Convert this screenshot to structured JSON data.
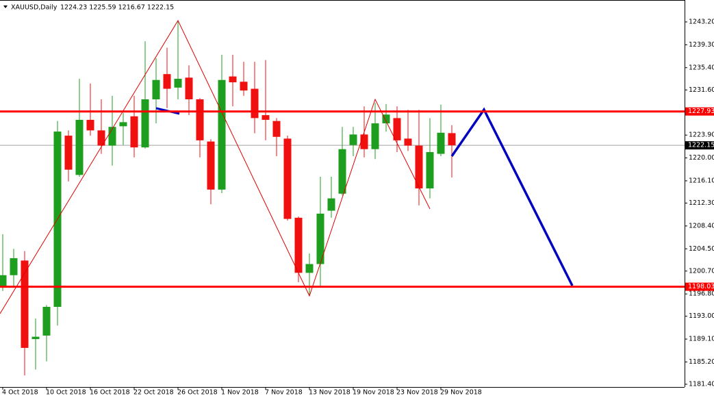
{
  "chart_data": {
    "type": "candlestick",
    "symbol": "XAUUSD,Daily",
    "quote": "1224.23 1225.59 1216.67 1222.15",
    "categories": [
      "4 Oct 2018",
      null,
      null,
      null,
      "10 Oct 2018",
      null,
      null,
      null,
      "16 Oct 2018",
      null,
      null,
      null,
      "22 Oct 2018",
      null,
      null,
      null,
      "26 Oct 2018",
      null,
      null,
      null,
      "1 Nov 2018",
      null,
      null,
      null,
      "7 Nov 2018",
      null,
      null,
      null,
      "13 Nov 2018",
      null,
      null,
      null,
      "19 Nov 2018",
      null,
      null,
      null,
      "23 Nov 2018",
      null,
      null,
      null,
      "29 Nov 2018",
      null
    ],
    "open": [
      1197.9,
      1200.0,
      1202.5,
      1189.1,
      1189.7,
      1194.6,
      1223.8,
      1217.1,
      1226.5,
      1224.7,
      1222.1,
      1225.4,
      1227.1,
      1221.8,
      1230.0,
      1234.3,
      1232.0,
      1233.7,
      1230.0,
      1222.8,
      1214.6,
      1233.9,
      1233.0,
      1231.8,
      1227.3,
      1226.3,
      1223.3,
      1209.8,
      1200.4,
      1201.9,
      1211.0,
      1213.9,
      1222.2,
      1224.0,
      1221.5,
      1225.9,
      1226.8,
      1223.3,
      1222.1,
      1214.8,
      1220.7,
      1224.23
    ],
    "high": [
      1207.0,
      1204.5,
      1204.1,
      1192.6,
      1194.9,
      1226.3,
      1224.7,
      1233.5,
      1232.7,
      1230.0,
      1230.6,
      1227.7,
      1230.6,
      1239.9,
      1237.0,
      1238.8,
      1243.4,
      1235.8,
      1230.2,
      1223.2,
      1237.6,
      1237.6,
      1236.4,
      1236.4,
      1236.7,
      1226.8,
      1223.8,
      1210.0,
      1203.7,
      1216.8,
      1216.8,
      1225.3,
      1225.3,
      1228.8,
      1229.4,
      1229.2,
      1228.8,
      1228.2,
      1228.2,
      1226.8,
      1229.1,
      1225.59
    ],
    "low": [
      1197.3,
      1197.9,
      1182.9,
      1183.9,
      1185.3,
      1191.4,
      1216.0,
      1216.8,
      1223.8,
      1220.7,
      1218.7,
      1222.2,
      1220.1,
      1221.6,
      1225.9,
      1228.5,
      1230.0,
      1227.3,
      1220.1,
      1212.1,
      1214.0,
      1228.8,
      1230.6,
      1224.2,
      1223.0,
      1220.3,
      1209.3,
      1198.8,
      1196.7,
      1198.1,
      1209.8,
      1213.6,
      1220.3,
      1220.1,
      1219.8,
      1224.5,
      1221.0,
      1221.2,
      1211.9,
      1213.1,
      1220.3,
      1216.67
    ],
    "close": [
      1200.0,
      1202.9,
      1187.6,
      1189.5,
      1194.6,
      1224.5,
      1218.0,
      1226.5,
      1224.7,
      1222.1,
      1225.3,
      1226.1,
      1221.8,
      1230.0,
      1233.3,
      1231.8,
      1233.5,
      1230.0,
      1223.0,
      1214.6,
      1233.3,
      1232.9,
      1231.5,
      1226.8,
      1226.5,
      1223.6,
      1209.6,
      1200.4,
      1201.9,
      1210.5,
      1213.1,
      1221.5,
      1224.0,
      1221.5,
      1225.9,
      1227.4,
      1223.0,
      1222.1,
      1214.8,
      1221.0,
      1224.3,
      1222.15
    ],
    "up_color": "#1e9e1e",
    "down_color": "#f01010",
    "ylim": [
      1180.93,
      1246.94
    ],
    "yticks": [
      {
        "value": 1243.2,
        "label": "1243.20"
      },
      {
        "value": 1239.3,
        "label": "1239.30"
      },
      {
        "value": 1235.4,
        "label": "1235.40"
      },
      {
        "value": 1231.6,
        "label": "1231.60"
      },
      {
        "value": 1223.9,
        "label": "1223.90"
      },
      {
        "value": 1220.0,
        "label": "1220.00"
      },
      {
        "value": 1216.1,
        "label": "1216.10"
      },
      {
        "value": 1212.3,
        "label": "1212.30"
      },
      {
        "value": 1208.4,
        "label": "1208.40"
      },
      {
        "value": 1204.5,
        "label": "1204.50"
      },
      {
        "value": 1200.7,
        "label": "1200.70"
      },
      {
        "value": 1196.8,
        "label": "1196.80"
      },
      {
        "value": 1193.0,
        "label": "1193.00"
      },
      {
        "value": 1189.1,
        "label": "1189.10"
      },
      {
        "value": 1185.2,
        "label": "1185.20"
      },
      {
        "value": 1181.4,
        "label": "1181.40"
      }
    ],
    "hlines": [
      {
        "value": 1227.93,
        "color": "#ff0000"
      },
      {
        "value": 1198.03,
        "color": "#ff0000"
      }
    ],
    "price_line": {
      "value": 1222.15,
      "color": "#a0a0a0"
    }
  }
}
